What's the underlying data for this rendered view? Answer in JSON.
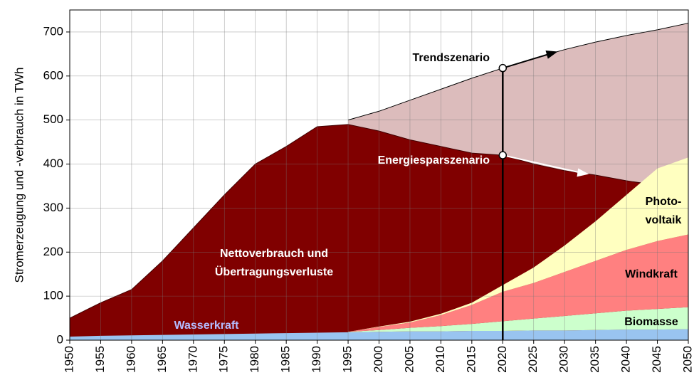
{
  "chart_data": {
    "type": "area",
    "y_label": "Stromerzeugung und -verbrauch in TWh",
    "x": [
      1950,
      1955,
      1960,
      1965,
      1970,
      1975,
      1980,
      1985,
      1990,
      1995,
      2000,
      2005,
      2010,
      2015,
      2020,
      2025,
      2030,
      2035,
      2040,
      2045,
      2050
    ],
    "xlim": [
      1950,
      2050
    ],
    "xticks": [
      1950,
      1955,
      1960,
      1965,
      1970,
      1975,
      1980,
      1985,
      1990,
      1995,
      2000,
      2005,
      2010,
      2015,
      2020,
      2025,
      2030,
      2035,
      2040,
      2045,
      2050
    ],
    "ylim": [
      0,
      750
    ],
    "yticks": [
      0,
      100,
      200,
      300,
      400,
      500,
      600,
      700
    ],
    "grid": true,
    "vline": 2020,
    "series": [
      {
        "name": "Trendszenario",
        "color": "#dcbcbc",
        "label_color": "#000000",
        "stacked": false,
        "values": [
          null,
          null,
          null,
          null,
          null,
          null,
          null,
          null,
          null,
          500,
          520,
          545,
          570,
          595,
          618,
          640,
          660,
          677,
          692,
          705,
          720
        ]
      },
      {
        "name": [
          "Nettoverbrauch und",
          "Übertragungsverluste"
        ],
        "color": "#800000",
        "label_color": "#ffffff",
        "stacked": false,
        "values": [
          50,
          85,
          115,
          180,
          255,
          330,
          400,
          440,
          485,
          490,
          475,
          455,
          440,
          425,
          420,
          400,
          385,
          375,
          362,
          352,
          340
        ]
      },
      {
        "name": "Wasserkraft",
        "color": "#99c4f0",
        "label_color": "#b4bcff",
        "stacked": true,
        "values": [
          8,
          10,
          11,
          12,
          13,
          14,
          15,
          16,
          17,
          18,
          19,
          20,
          20,
          21,
          21,
          22,
          22,
          23,
          24,
          24,
          25
        ]
      },
      {
        "name": "Biomasse",
        "color": "#ccffcc",
        "label_color": "#000000",
        "stacked": true,
        "values": [
          null,
          null,
          null,
          null,
          null,
          null,
          null,
          null,
          null,
          1,
          4,
          8,
          12,
          16,
          22,
          27,
          33,
          38,
          43,
          47,
          50
        ]
      },
      {
        "name": "Windkraft",
        "color": "#ff8080",
        "label_color": "#000000",
        "stacked": true,
        "values": [
          null,
          null,
          null,
          null,
          null,
          null,
          null,
          null,
          null,
          0,
          7,
          12,
          25,
          43,
          67,
          81,
          100,
          119,
          138,
          154,
          165
        ]
      },
      {
        "name": [
          "Photo-",
          "voltaik"
        ],
        "color": "#ffffc0",
        "label_color": "#000000",
        "stacked": true,
        "values": [
          null,
          null,
          null,
          null,
          null,
          null,
          null,
          null,
          null,
          0,
          1,
          2,
          3,
          5,
          15,
          35,
          60,
          90,
          125,
          165,
          175
        ]
      }
    ],
    "annotations": [
      "Energiesparszenario"
    ]
  }
}
